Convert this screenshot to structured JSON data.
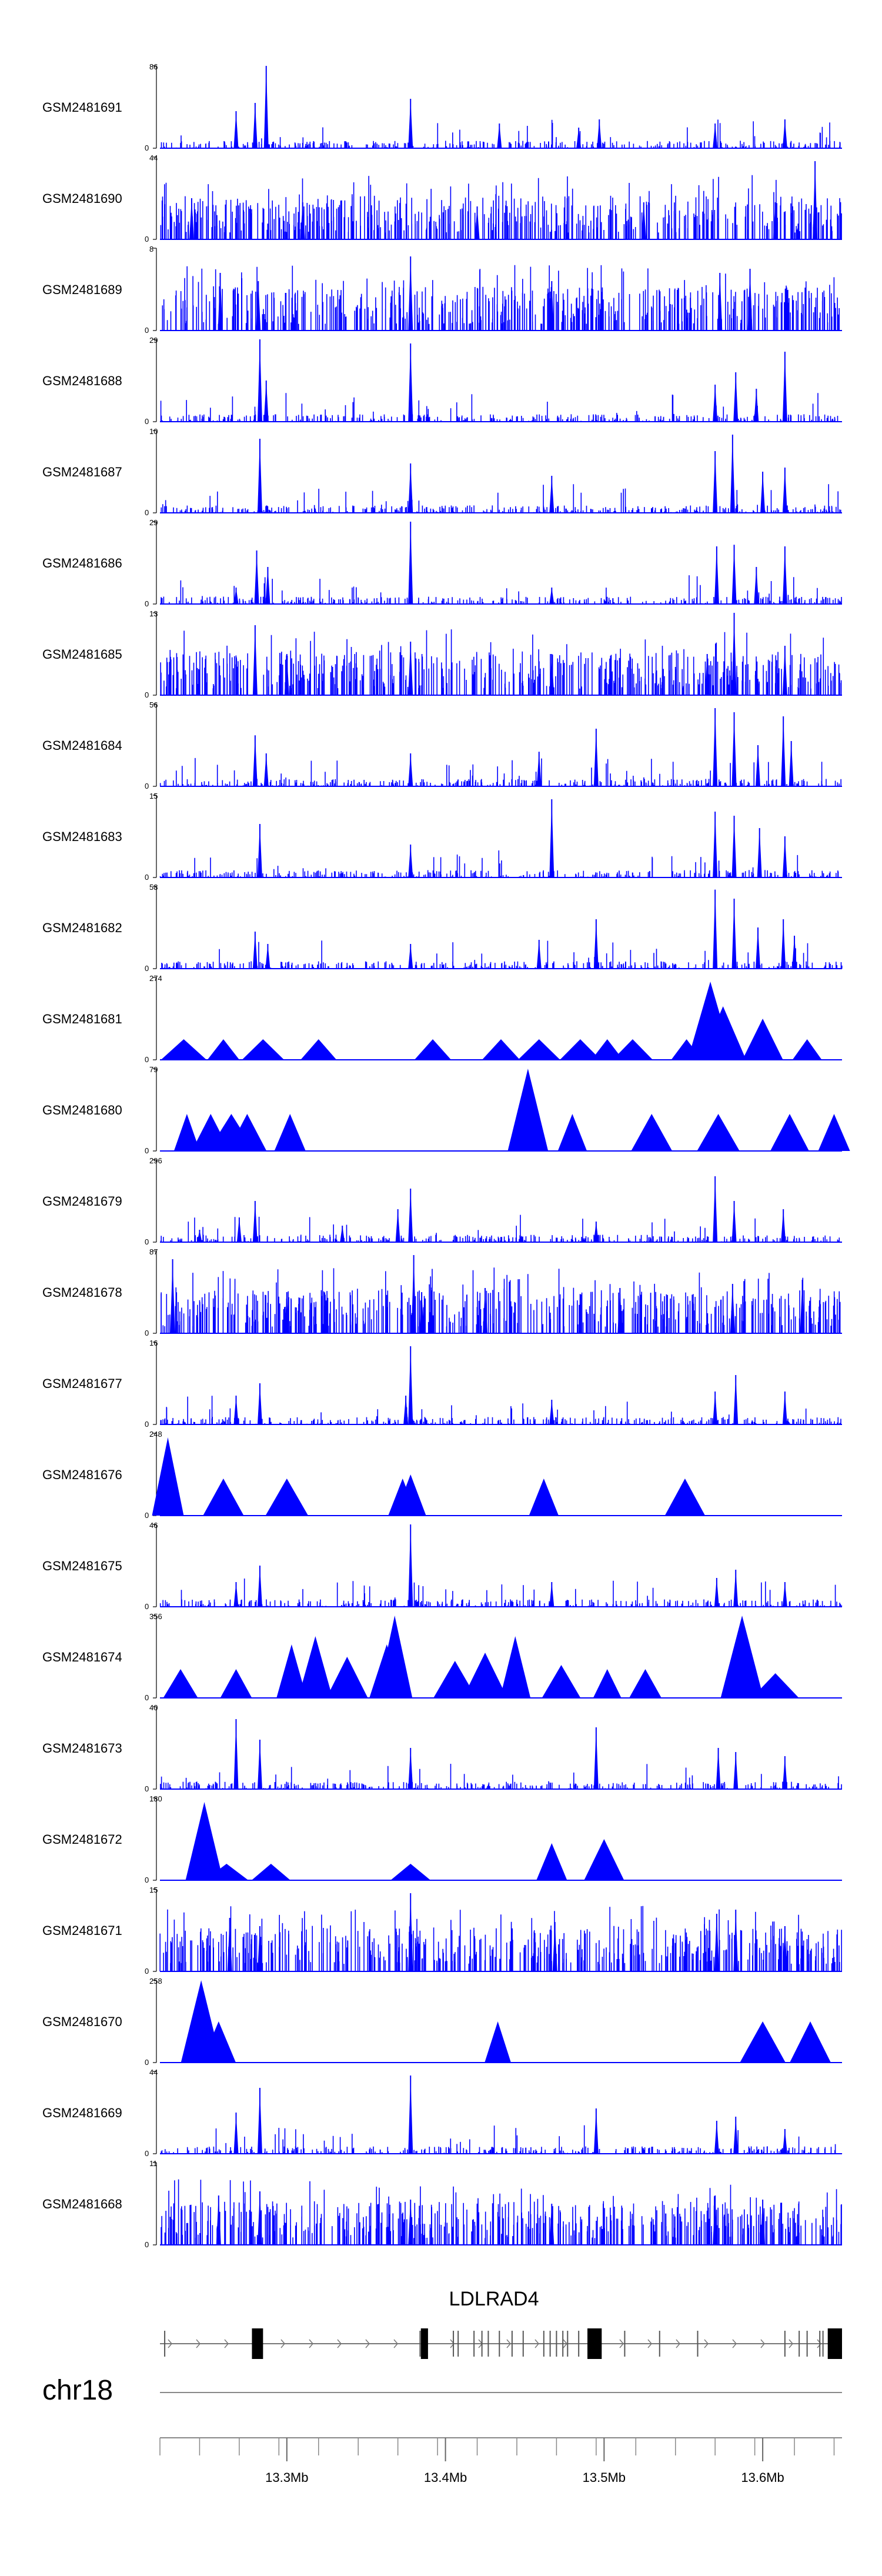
{
  "chart_data": {
    "type": "area",
    "title": "",
    "chromosome": "chr18",
    "gene": "LDLRAD4",
    "xlim": [
      13.22,
      13.65
    ],
    "x_unit": "Mb",
    "ticks": [
      {
        "value": 13.3,
        "label": "13.3Mb"
      },
      {
        "value": 13.4,
        "label": "13.4Mb"
      },
      {
        "value": 13.5,
        "label": "13.5Mb"
      },
      {
        "value": 13.6,
        "label": "13.6Mb"
      }
    ],
    "minor_tick_step": 0.0125,
    "color": "#0000ff",
    "tracks": [
      {
        "name": "GSM2481691",
        "ymax": 86,
        "peaks": [
          [
            13.268,
            0.45
          ],
          [
            13.28,
            0.55
          ],
          [
            13.287,
            1.0
          ],
          [
            13.378,
            0.6
          ],
          [
            13.434,
            0.3
          ],
          [
            13.484,
            0.25
          ],
          [
            13.497,
            0.35
          ],
          [
            13.57,
            0.3
          ],
          [
            13.614,
            0.35
          ]
        ]
      },
      {
        "name": "GSM2481690",
        "ymax": 44,
        "peaks": [
          [
            13.24,
            0.5
          ],
          [
            13.31,
            0.45
          ],
          [
            13.42,
            0.4
          ],
          [
            13.525,
            0.45
          ],
          [
            13.608,
            0.45
          ],
          [
            13.633,
            0.95
          ]
        ]
      },
      {
        "name": "GSM2481689",
        "ymax": 8,
        "peaks": [
          [
            13.258,
            0.7
          ],
          [
            13.282,
            0.6
          ],
          [
            13.378,
            0.9
          ],
          [
            13.467,
            0.6
          ],
          [
            13.573,
            0.7
          ],
          [
            13.592,
            0.75
          ]
        ]
      },
      {
        "name": "GSM2481688",
        "ymax": 29,
        "peaks": [
          [
            13.283,
            1.0
          ],
          [
            13.287,
            0.5
          ],
          [
            13.378,
            0.95
          ],
          [
            13.57,
            0.45
          ],
          [
            13.583,
            0.6
          ],
          [
            13.596,
            0.4
          ],
          [
            13.614,
            0.85
          ]
        ]
      },
      {
        "name": "GSM2481687",
        "ymax": 10,
        "peaks": [
          [
            13.283,
            0.9
          ],
          [
            13.378,
            0.6
          ],
          [
            13.467,
            0.45
          ],
          [
            13.57,
            0.75
          ],
          [
            13.581,
            0.95
          ],
          [
            13.6,
            0.5
          ],
          [
            13.614,
            0.55
          ]
        ]
      },
      {
        "name": "GSM2481686",
        "ymax": 29,
        "peaks": [
          [
            13.268,
            0.2
          ],
          [
            13.281,
            0.65
          ],
          [
            13.288,
            0.45
          ],
          [
            13.378,
            1.0
          ],
          [
            13.467,
            0.2
          ],
          [
            13.571,
            0.7
          ],
          [
            13.582,
            0.72
          ],
          [
            13.596,
            0.45
          ],
          [
            13.614,
            0.7
          ]
        ]
      },
      {
        "name": "GSM2481685",
        "ymax": 13,
        "peaks": [
          [
            13.28,
            0.85
          ],
          [
            13.3,
            0.5
          ],
          [
            13.378,
            0.65
          ],
          [
            13.467,
            0.5
          ],
          [
            13.565,
            0.5
          ],
          [
            13.582,
            1.0
          ],
          [
            13.614,
            0.6
          ]
        ]
      },
      {
        "name": "GSM2481684",
        "ymax": 56,
        "peaks": [
          [
            13.28,
            0.62
          ],
          [
            13.287,
            0.4
          ],
          [
            13.378,
            0.4
          ],
          [
            13.459,
            0.42
          ],
          [
            13.495,
            0.7
          ],
          [
            13.57,
            0.95
          ],
          [
            13.582,
            0.9
          ],
          [
            13.597,
            0.5
          ],
          [
            13.613,
            0.85
          ],
          [
            13.618,
            0.55
          ]
        ]
      },
      {
        "name": "GSM2481683",
        "ymax": 15,
        "peaks": [
          [
            13.283,
            0.65
          ],
          [
            13.378,
            0.4
          ],
          [
            13.467,
            0.95
          ],
          [
            13.57,
            0.8
          ],
          [
            13.582,
            0.75
          ],
          [
            13.598,
            0.6
          ],
          [
            13.614,
            0.5
          ]
        ]
      },
      {
        "name": "GSM2481682",
        "ymax": 58,
        "peaks": [
          [
            13.28,
            0.45
          ],
          [
            13.288,
            0.3
          ],
          [
            13.378,
            0.3
          ],
          [
            13.459,
            0.35
          ],
          [
            13.495,
            0.6
          ],
          [
            13.57,
            0.96
          ],
          [
            13.582,
            0.85
          ],
          [
            13.597,
            0.5
          ],
          [
            13.613,
            0.6
          ],
          [
            13.62,
            0.4
          ]
        ]
      },
      {
        "name": "GSM2481681",
        "ymax": 274,
        "peaks": [
          [
            13.235,
            0.25
          ],
          [
            13.26,
            0.25
          ],
          [
            13.285,
            0.25
          ],
          [
            13.32,
            0.25
          ],
          [
            13.392,
            0.25
          ],
          [
            13.435,
            0.25
          ],
          [
            13.459,
            0.25
          ],
          [
            13.485,
            0.25
          ],
          [
            13.502,
            0.25
          ],
          [
            13.518,
            0.25
          ],
          [
            13.552,
            0.25
          ],
          [
            13.567,
            0.95
          ],
          [
            13.575,
            0.65
          ],
          [
            13.6,
            0.5
          ],
          [
            13.628,
            0.25
          ]
        ]
      },
      {
        "name": "GSM2481680",
        "ymax": 79,
        "peaks": [
          [
            13.237,
            0.45
          ],
          [
            13.252,
            0.45
          ],
          [
            13.265,
            0.45
          ],
          [
            13.275,
            0.45
          ],
          [
            13.302,
            0.45
          ],
          [
            13.452,
            1.0
          ],
          [
            13.48,
            0.45
          ],
          [
            13.53,
            0.45
          ],
          [
            13.572,
            0.45
          ],
          [
            13.617,
            0.45
          ],
          [
            13.645,
            0.45
          ]
        ]
      },
      {
        "name": "GSM2481679",
        "ymax": 296,
        "peaks": [
          [
            13.245,
            0.15
          ],
          [
            13.27,
            0.3
          ],
          [
            13.28,
            0.5
          ],
          [
            13.335,
            0.2
          ],
          [
            13.37,
            0.4
          ],
          [
            13.378,
            0.65
          ],
          [
            13.495,
            0.25
          ],
          [
            13.57,
            0.8
          ],
          [
            13.582,
            0.5
          ],
          [
            13.613,
            0.4
          ]
        ]
      },
      {
        "name": "GSM2481678",
        "ymax": 87,
        "peaks": [
          [
            13.228,
            0.9
          ],
          [
            13.3,
            0.5
          ],
          [
            13.38,
            0.95
          ],
          [
            13.385,
            0.5
          ],
          [
            13.425,
            0.55
          ],
          [
            13.51,
            0.55
          ],
          [
            13.581,
            0.6
          ],
          [
            13.625,
            0.65
          ]
        ]
      },
      {
        "name": "GSM2481677",
        "ymax": 16,
        "peaks": [
          [
            13.268,
            0.35
          ],
          [
            13.283,
            0.5
          ],
          [
            13.375,
            0.35
          ],
          [
            13.378,
            0.95
          ],
          [
            13.467,
            0.3
          ],
          [
            13.57,
            0.4
          ],
          [
            13.583,
            0.6
          ],
          [
            13.614,
            0.4
          ]
        ]
      },
      {
        "name": "GSM2481676",
        "ymax": 248,
        "peaks": [
          [
            13.225,
            0.95
          ],
          [
            13.26,
            0.45
          ],
          [
            13.3,
            0.45
          ],
          [
            13.373,
            0.45
          ],
          [
            13.378,
            0.5
          ],
          [
            13.462,
            0.45
          ],
          [
            13.551,
            0.45
          ]
        ]
      },
      {
        "name": "GSM2481675",
        "ymax": 46,
        "peaks": [
          [
            13.268,
            0.3
          ],
          [
            13.283,
            0.5
          ],
          [
            13.378,
            1.0
          ],
          [
            13.467,
            0.3
          ],
          [
            13.571,
            0.35
          ],
          [
            13.583,
            0.45
          ],
          [
            13.614,
            0.3
          ]
        ]
      },
      {
        "name": "GSM2481674",
        "ymax": 356,
        "peaks": [
          [
            13.233,
            0.35
          ],
          [
            13.268,
            0.35
          ],
          [
            13.303,
            0.65
          ],
          [
            13.318,
            0.75
          ],
          [
            13.338,
            0.5
          ],
          [
            13.363,
            0.65
          ],
          [
            13.368,
            1.0
          ],
          [
            13.406,
            0.45
          ],
          [
            13.425,
            0.55
          ],
          [
            13.444,
            0.75
          ],
          [
            13.473,
            0.4
          ],
          [
            13.502,
            0.35
          ],
          [
            13.526,
            0.35
          ],
          [
            13.587,
            1.0
          ],
          [
            13.608,
            0.3
          ]
        ]
      },
      {
        "name": "GSM2481673",
        "ymax": 40,
        "peaks": [
          [
            13.268,
            0.85
          ],
          [
            13.283,
            0.6
          ],
          [
            13.378,
            0.5
          ],
          [
            13.495,
            0.75
          ],
          [
            13.572,
            0.5
          ],
          [
            13.583,
            0.45
          ],
          [
            13.614,
            0.4
          ]
        ]
      },
      {
        "name": "GSM2481672",
        "ymax": 180,
        "peaks": [
          [
            13.248,
            0.95
          ],
          [
            13.262,
            0.2
          ],
          [
            13.29,
            0.2
          ],
          [
            13.378,
            0.2
          ],
          [
            13.467,
            0.45
          ],
          [
            13.5,
            0.5
          ]
        ]
      },
      {
        "name": "GSM2481671",
        "ymax": 15,
        "peaks": [
          [
            13.264,
            0.65
          ],
          [
            13.283,
            0.55
          ],
          [
            13.378,
            0.95
          ],
          [
            13.469,
            0.6
          ],
          [
            13.571,
            0.7
          ],
          [
            13.583,
            0.75
          ],
          [
            13.614,
            0.55
          ]
        ]
      },
      {
        "name": "GSM2481670",
        "ymax": 258,
        "peaks": [
          [
            13.246,
            1.0
          ],
          [
            13.257,
            0.5
          ],
          [
            13.433,
            0.5
          ],
          [
            13.6,
            0.5
          ],
          [
            13.63,
            0.5
          ]
        ]
      },
      {
        "name": "GSM2481669",
        "ymax": 44,
        "peaks": [
          [
            13.268,
            0.5
          ],
          [
            13.283,
            0.8
          ],
          [
            13.378,
            0.95
          ],
          [
            13.495,
            0.55
          ],
          [
            13.571,
            0.4
          ],
          [
            13.583,
            0.45
          ],
          [
            13.614,
            0.3
          ]
        ]
      },
      {
        "name": "GSM2481668",
        "ymax": 11,
        "peaks": [
          [
            13.257,
            0.6
          ],
          [
            13.283,
            0.65
          ],
          [
            13.378,
            0.55
          ],
          [
            13.467,
            0.5
          ],
          [
            13.57,
            0.6
          ],
          [
            13.6,
            0.55
          ]
        ]
      }
    ],
    "gene_model": {
      "line": [
        13.22,
        13.65
      ],
      "exons": [
        {
          "start": 13.278,
          "end": 13.285,
          "kind": "coding"
        },
        {
          "start": 13.3845,
          "end": 13.389,
          "kind": "coding"
        },
        {
          "start": 13.4895,
          "end": 13.4985,
          "kind": "coding"
        },
        {
          "start": 13.641,
          "end": 13.65,
          "kind": "coding"
        }
      ],
      "introns_marks": [
        13.223,
        13.384,
        13.405,
        13.408,
        13.418,
        13.423,
        13.427,
        13.434,
        13.442,
        13.449,
        13.462,
        13.466,
        13.47,
        13.474,
        13.477,
        13.484,
        13.513,
        13.535,
        13.559,
        13.614,
        13.623,
        13.628,
        13.636,
        13.638
      ]
    }
  }
}
